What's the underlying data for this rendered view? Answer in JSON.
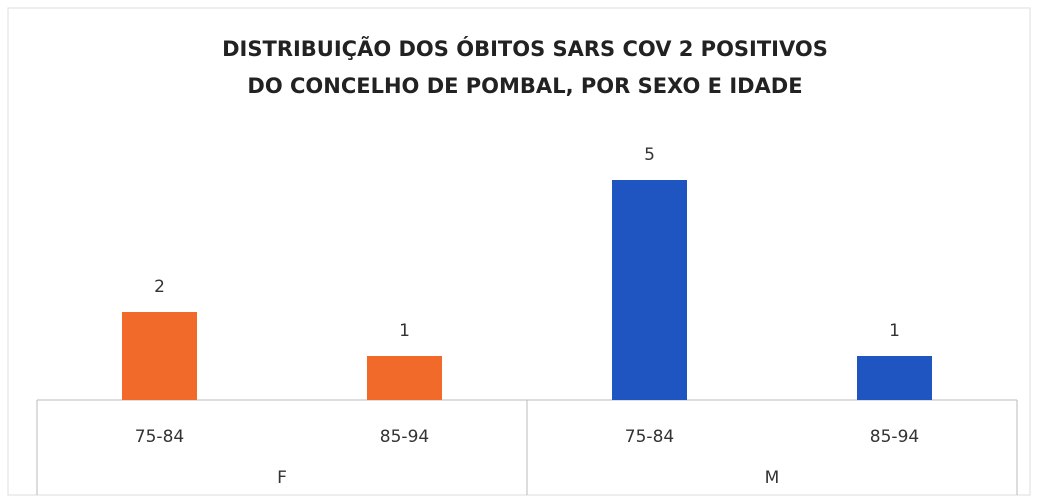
{
  "chart_data": {
    "type": "bar",
    "title": [
      "DISTRIBUIÇÃO DOS ÓBITOS SARS COV 2 POSITIVOS",
      "DO CONCELHO DE POMBAL, POR SEXO E IDADE"
    ],
    "series": [
      {
        "name": "F",
        "color": "#f26a2a",
        "categories": [
          "75-84",
          "85-94"
        ],
        "values": [
          2,
          1
        ]
      },
      {
        "name": "M",
        "color": "#1f55c0",
        "categories": [
          "75-84",
          "85-94"
        ],
        "values": [
          5,
          1
        ]
      }
    ]
  }
}
